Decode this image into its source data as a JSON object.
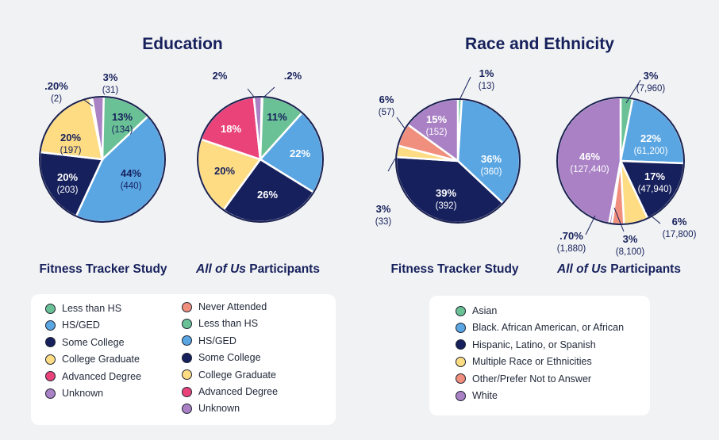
{
  "sections": {
    "education_title": "Education",
    "race_title": "Race and Ethnicity"
  },
  "subtitles": {
    "fitness_tracker": "Fitness Tracker Study",
    "all_of_us_italic": "All of Us",
    "participants": " Participants"
  },
  "colors": {
    "never_attended": "#f08f7d",
    "less_than_hs": "#6bc196",
    "hs_ged": "#5aa6e3",
    "some_college": "#16205c",
    "college_graduate": "#fddc84",
    "advanced_degree": "#e9437a",
    "unknown": "#a981c4",
    "asian": "#6bc196",
    "black": "#5aa6e3",
    "hispanic": "#16205c",
    "multiple": "#fddc84",
    "other": "#f08f7d",
    "white": "#a981c4"
  },
  "legend_education": [
    {
      "label": "Less than HS",
      "color": "#6bc196"
    },
    {
      "label": "HS/GED",
      "color": "#5aa6e3"
    },
    {
      "label": "Some College",
      "color": "#16205c"
    },
    {
      "label": "College Graduate",
      "color": "#fddc84"
    },
    {
      "label": "Advanced Degree",
      "color": "#e9437a"
    },
    {
      "label": "Unknown",
      "color": "#a981c4"
    },
    {
      "label": "Never Attended",
      "color": "#f08f7d"
    },
    {
      "label": "Less than HS",
      "color": "#6bc196"
    },
    {
      "label": "HS/GED",
      "color": "#5aa6e3"
    },
    {
      "label": "Some College",
      "color": "#16205c"
    },
    {
      "label": "College Graduate",
      "color": "#fddc84"
    },
    {
      "label": "Advanced Degree",
      "color": "#e9437a"
    },
    {
      "label": "Unknown",
      "color": "#a981c4"
    }
  ],
  "legend_race": [
    {
      "label": "Asian",
      "color": "#6bc196"
    },
    {
      "label": "Black. African American, or African",
      "color": "#5aa6e3"
    },
    {
      "label": "Hispanic, Latino, or Spanish",
      "color": "#16205c"
    },
    {
      "label": "Multiple Race or Ethnicities",
      "color": "#fddc84"
    },
    {
      "label": "Other/Prefer Not to Answer",
      "color": "#f08f7d"
    },
    {
      "label": "White",
      "color": "#a981c4"
    }
  ],
  "chart_data": [
    {
      "type": "pie",
      "slices": [
        {
          "label": "Less than HS",
          "value": 13,
          "pct_label": "13%",
          "count_label": "(134)",
          "color": "#6bc196"
        },
        {
          "label": "HS/GED",
          "value": 44,
          "pct_label": "44%",
          "count_label": "(440)",
          "color": "#5aa6e3"
        },
        {
          "label": "Some College",
          "value": 20,
          "pct_label": "20%",
          "count_label": "(203)",
          "color": "#16205c"
        },
        {
          "label": "College Graduate",
          "value": 20,
          "pct_label": "20%",
          "count_label": "(197)",
          "color": "#fddc84"
        },
        {
          "label": "Advanced Degree",
          "value": 0.2,
          "pct_label": ".20%",
          "count_label": "(2)",
          "color": "#e9437a"
        },
        {
          "label": "Unknown",
          "value": 3,
          "pct_label": "3%",
          "count_label": "(31)",
          "color": "#a981c4"
        }
      ]
    },
    {
      "type": "pie",
      "slices": [
        {
          "label": "Less than HS",
          "value": 11,
          "pct_label": "11%",
          "count_label": "",
          "color": "#6bc196"
        },
        {
          "label": "HS/GED",
          "value": 22,
          "pct_label": "22%",
          "count_label": "",
          "color": "#5aa6e3"
        },
        {
          "label": "Some College",
          "value": 26,
          "pct_label": "26%",
          "count_label": "",
          "color": "#16205c"
        },
        {
          "label": "College Graduate",
          "value": 20,
          "pct_label": "20%",
          "count_label": "",
          "color": "#fddc84"
        },
        {
          "label": "Advanced Degree",
          "value": 18,
          "pct_label": "18%",
          "count_label": "",
          "color": "#e9437a"
        },
        {
          "label": "Unknown",
          "value": 2,
          "pct_label": "2%",
          "count_label": "",
          "color": "#a981c4"
        },
        {
          "label": "Never Attended",
          "value": 0.2,
          "pct_label": ".2%",
          "count_label": "",
          "color": "#f08f7d"
        }
      ]
    },
    {
      "type": "pie",
      "slices": [
        {
          "label": "Asian",
          "value": 1,
          "pct_label": "1%",
          "count_label": "(13)",
          "color": "#6bc196"
        },
        {
          "label": "Black. African American, or African",
          "value": 36,
          "pct_label": "36%",
          "count_label": "(360)",
          "color": "#5aa6e3"
        },
        {
          "label": "Hispanic, Latino, or Spanish",
          "value": 39,
          "pct_label": "39%",
          "count_label": "(392)",
          "color": "#16205c"
        },
        {
          "label": "Multiple Race or Ethnicities",
          "value": 3,
          "pct_label": "3%",
          "count_label": "(33)",
          "color": "#fddc84"
        },
        {
          "label": "Other/Prefer Not to Answer",
          "value": 6,
          "pct_label": "6%",
          "count_label": "(57)",
          "color": "#f08f7d"
        },
        {
          "label": "White",
          "value": 15,
          "pct_label": "15%",
          "count_label": "(152)",
          "color": "#a981c4"
        }
      ]
    },
    {
      "type": "pie",
      "slices": [
        {
          "label": "Asian",
          "value": 3,
          "pct_label": "3%",
          "count_label": "(7,960)",
          "color": "#6bc196"
        },
        {
          "label": "Black. African American, or African",
          "value": 22,
          "pct_label": "22%",
          "count_label": "(61,200)",
          "color": "#5aa6e3"
        },
        {
          "label": "Hispanic, Latino, or Spanish",
          "value": 17,
          "pct_label": "17%",
          "count_label": "(47,940)",
          "color": "#16205c"
        },
        {
          "label": "Multiple Race or Ethnicities",
          "value": 6,
          "pct_label": "6%",
          "count_label": "(17,800)",
          "color": "#fddc84"
        },
        {
          "label": "Other/Prefer Not to Answer",
          "value": 3,
          "pct_label": "3%",
          "count_label": "(8,100)",
          "color": "#f08f7d"
        },
        {
          "label": "White",
          "value": 0.7,
          "pct_label": ".70%",
          "count_label": "(1,880)",
          "color": "#a981c4"
        },
        {
          "label": "White",
          "value": 46,
          "pct_label": "46%",
          "count_label": "(127,440)",
          "color": "#a981c4"
        }
      ]
    }
  ]
}
